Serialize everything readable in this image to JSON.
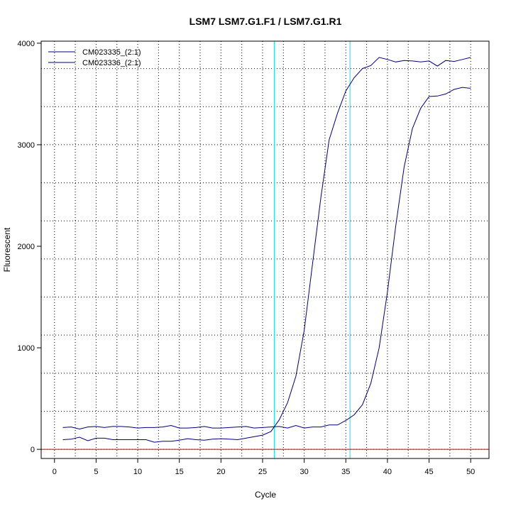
{
  "chart_data": {
    "type": "line",
    "title": "LSM7  LSM7.G1.F1 / LSM7.G1.R1",
    "xlabel": "Cycle",
    "ylabel": "Fluorescent",
    "xlim": [
      -1.6,
      52.2
    ],
    "ylim": [
      -90,
      4020
    ],
    "xticks": [
      0,
      5,
      10,
      15,
      20,
      25,
      30,
      35,
      40,
      45,
      50
    ],
    "yticks": [
      0,
      1000,
      2000,
      3000,
      4000
    ],
    "grid": true,
    "legend_position": "top-left",
    "threshold_line": {
      "y": 0,
      "color": "#cc0000"
    },
    "marker_lines": [
      {
        "x": 26.4,
        "color": "#00e5ee"
      },
      {
        "x": 35.5,
        "color": "#00e5ee"
      }
    ],
    "series": [
      {
        "name": "CM023335_(2:1)",
        "color": "#000080",
        "x": [
          1,
          2,
          3,
          4,
          5,
          6,
          7,
          8,
          9,
          10,
          11,
          12,
          13,
          14,
          15,
          16,
          17,
          18,
          19,
          20,
          21,
          22,
          23,
          24,
          25,
          26,
          27,
          28,
          29,
          30,
          31,
          32,
          33,
          34,
          35,
          36,
          37,
          38,
          39,
          40,
          41,
          42,
          43,
          44,
          45,
          46,
          47,
          48,
          49,
          50
        ],
        "values": [
          215,
          220,
          200,
          220,
          225,
          215,
          225,
          225,
          220,
          210,
          215,
          215,
          220,
          235,
          210,
          210,
          215,
          225,
          210,
          210,
          215,
          220,
          225,
          210,
          215,
          220,
          225,
          210,
          235,
          210,
          220,
          220,
          240,
          240,
          285,
          340,
          440,
          650,
          1000,
          1550,
          2200,
          2780,
          3160,
          3360,
          3475,
          3480,
          3500,
          3545,
          3565,
          3555
        ]
      },
      {
        "name": "CM023336_(2:1)",
        "color": "#000080",
        "x": [
          1,
          2,
          3,
          4,
          5,
          6,
          7,
          8,
          9,
          10,
          11,
          12,
          13,
          14,
          15,
          16,
          17,
          18,
          19,
          20,
          21,
          22,
          23,
          24,
          25,
          26,
          27,
          28,
          29,
          30,
          31,
          32,
          33,
          34,
          35,
          36,
          37,
          38,
          39,
          40,
          41,
          42,
          43,
          44,
          45,
          46,
          47,
          48,
          49,
          50
        ],
        "values": [
          95,
          100,
          120,
          85,
          110,
          110,
          95,
          95,
          95,
          95,
          95,
          70,
          80,
          80,
          90,
          105,
          95,
          90,
          100,
          105,
          100,
          95,
          110,
          125,
          140,
          175,
          290,
          460,
          720,
          1170,
          1830,
          2480,
          3050,
          3310,
          3530,
          3660,
          3750,
          3780,
          3860,
          3840,
          3815,
          3830,
          3825,
          3815,
          3825,
          3775,
          3830,
          3820,
          3840,
          3860
        ]
      }
    ]
  }
}
